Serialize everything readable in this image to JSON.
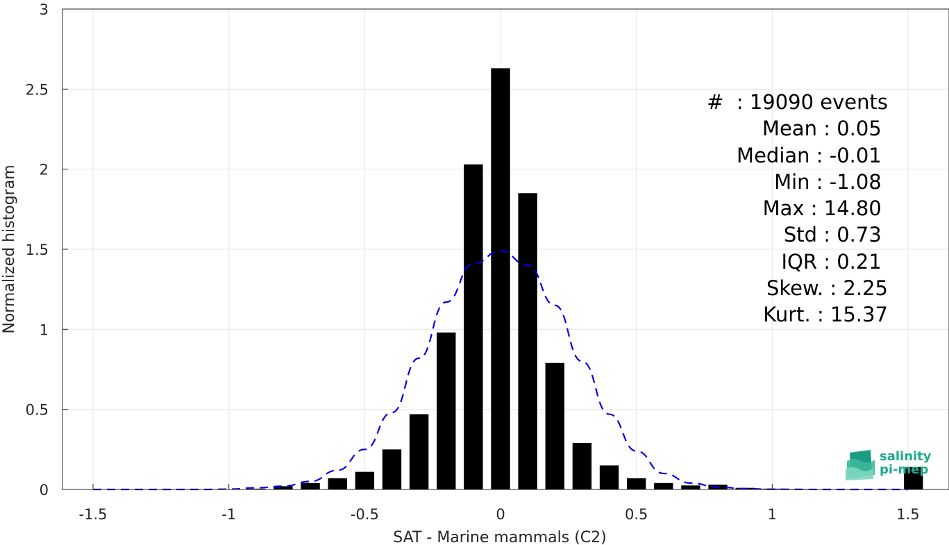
{
  "chart_data": {
    "type": "bar",
    "xlabel": "SAT - Marine mammals (C2)",
    "ylabel": "Normalized histogram",
    "xlim": [
      -1.5,
      1.5
    ],
    "ylim": [
      0,
      3
    ],
    "xticks": [
      "-1.5",
      "-1",
      "-0.5",
      "0",
      "0.5",
      "1",
      "1.5"
    ],
    "yticks": [
      "0",
      "0.5",
      "1",
      "1.5",
      "2",
      "2.5",
      "3"
    ],
    "grid": true,
    "bar_width": 0.07,
    "bins": [
      {
        "x": -1.0,
        "y": 0.002
      },
      {
        "x": -0.9,
        "y": 0.005
      },
      {
        "x": -0.8,
        "y": 0.02
      },
      {
        "x": -0.7,
        "y": 0.04
      },
      {
        "x": -0.6,
        "y": 0.07
      },
      {
        "x": -0.5,
        "y": 0.11
      },
      {
        "x": -0.4,
        "y": 0.25
      },
      {
        "x": -0.3,
        "y": 0.47
      },
      {
        "x": -0.2,
        "y": 0.98
      },
      {
        "x": -0.1,
        "y": 2.03
      },
      {
        "x": 0.0,
        "y": 2.63
      },
      {
        "x": 0.1,
        "y": 1.85
      },
      {
        "x": 0.2,
        "y": 0.79
      },
      {
        "x": 0.3,
        "y": 0.29
      },
      {
        "x": 0.4,
        "y": 0.15
      },
      {
        "x": 0.5,
        "y": 0.07
      },
      {
        "x": 0.6,
        "y": 0.04
      },
      {
        "x": 0.7,
        "y": 0.025
      },
      {
        "x": 0.8,
        "y": 0.03
      },
      {
        "x": 0.9,
        "y": 0.01
      },
      {
        "x": 1.0,
        "y": 0.005
      },
      {
        "x": 1.1,
        "y": 0.003
      },
      {
        "x": 1.2,
        "y": 0.002
      },
      {
        "x": 1.3,
        "y": 0.002
      },
      {
        "x": 1.4,
        "y": 0.002
      },
      {
        "x": 1.52,
        "y": 0.14
      }
    ],
    "fit_curve": {
      "style": "dashed",
      "color": "#0000ee",
      "points": [
        [
          -1.5,
          0.0
        ],
        [
          -1.3,
          0.0
        ],
        [
          -1.1,
          0.0
        ],
        [
          -1.0,
          0.002
        ],
        [
          -0.9,
          0.01
        ],
        [
          -0.8,
          0.02
        ],
        [
          -0.7,
          0.05
        ],
        [
          -0.6,
          0.12
        ],
        [
          -0.5,
          0.25
        ],
        [
          -0.4,
          0.48
        ],
        [
          -0.3,
          0.82
        ],
        [
          -0.2,
          1.17
        ],
        [
          -0.1,
          1.41
        ],
        [
          0.0,
          1.49
        ],
        [
          0.1,
          1.4
        ],
        [
          0.2,
          1.15
        ],
        [
          0.3,
          0.8
        ],
        [
          0.4,
          0.47
        ],
        [
          0.5,
          0.24
        ],
        [
          0.6,
          0.1
        ],
        [
          0.7,
          0.04
        ],
        [
          0.8,
          0.015
        ],
        [
          0.9,
          0.005
        ],
        [
          1.0,
          0.001
        ],
        [
          1.2,
          0.0
        ],
        [
          1.5,
          0.0
        ]
      ]
    },
    "bar_color": "#000000"
  },
  "stats": [
    "#  : 19090 events",
    "Mean : 0.05 ",
    "Median : -0.01 ",
    "Min : -1.08 ",
    "Max : 14.80 ",
    "Std : 0.73 ",
    "IQR : 0.21 ",
    "Skew. : 2.25",
    "Kurt. : 15.37"
  ],
  "logo": {
    "line1": "salinity",
    "line2": "pi-mep",
    "color": "#1faa8e"
  }
}
